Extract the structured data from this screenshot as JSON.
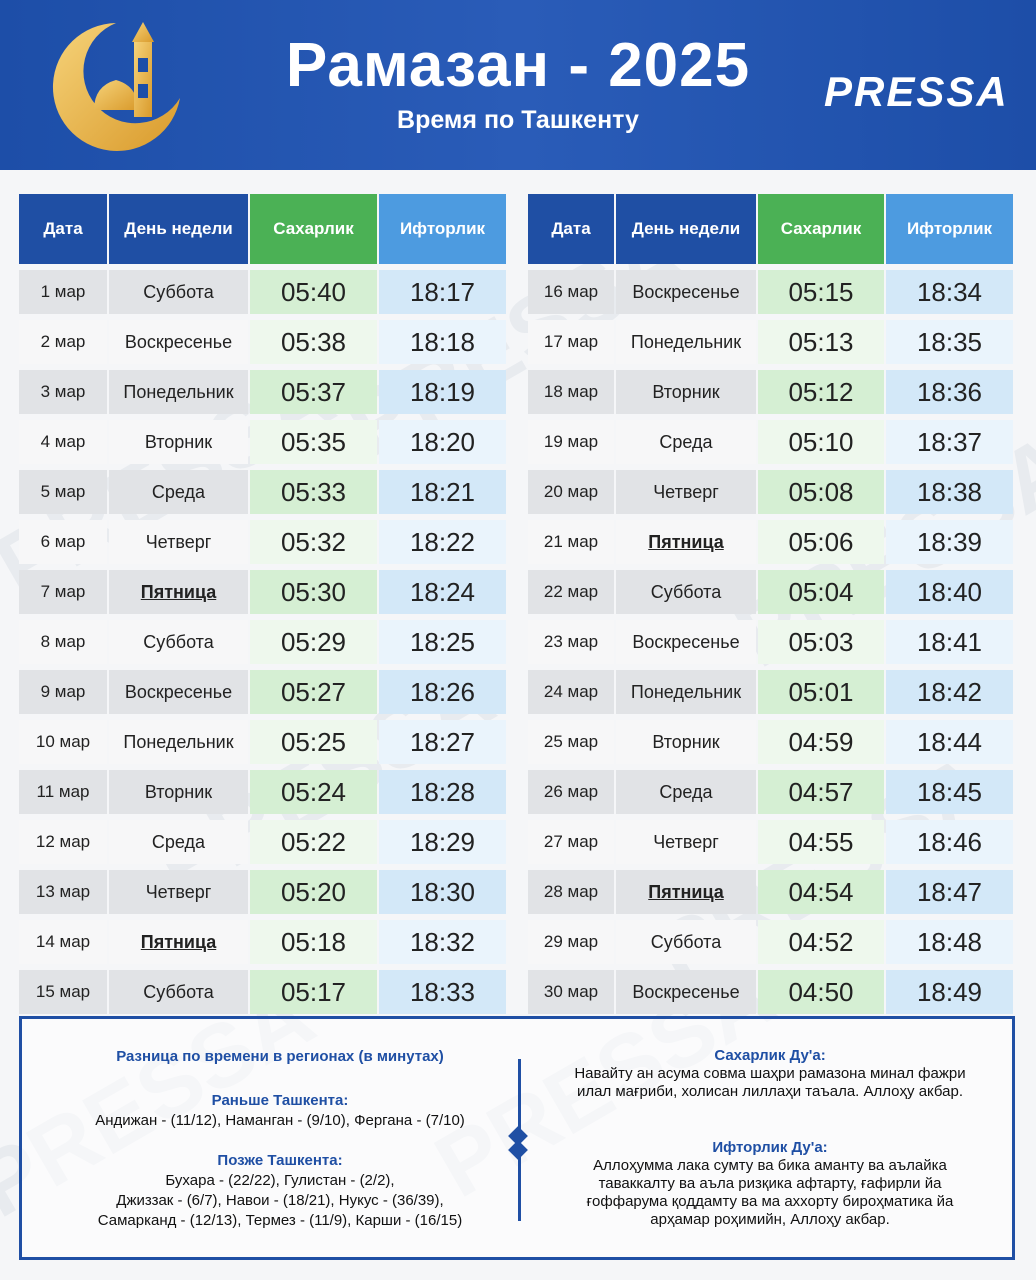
{
  "header": {
    "title": "Рамазан - 2025",
    "subtitle": "Время по Ташкенту",
    "brand": "PRESSA",
    "icon": "crescent-mosque-icon",
    "color_primary": "#1f4fa4",
    "color_gold": "#e8b24a"
  },
  "table": {
    "headers": {
      "date": "Дата",
      "day": "День недели",
      "sahar": "Сахарлик",
      "iftar": "Ифторлик"
    },
    "colors": {
      "header_blue": "#1f4fa4",
      "sahar_green": "#4bb155",
      "iftar_blue": "#4d9be0"
    },
    "left": [
      {
        "date": "1 мар",
        "day": "Суббота",
        "sahar": "05:40",
        "iftar": "18:17"
      },
      {
        "date": "2 мар",
        "day": "Воскресенье",
        "sahar": "05:38",
        "iftar": "18:18"
      },
      {
        "date": "3 мар",
        "day": "Понедельник",
        "sahar": "05:37",
        "iftar": "18:19"
      },
      {
        "date": "4 мар",
        "day": "Вторник",
        "sahar": "05:35",
        "iftar": "18:20"
      },
      {
        "date": "5 мар",
        "day": "Среда",
        "sahar": "05:33",
        "iftar": "18:21"
      },
      {
        "date": "6 мар",
        "day": "Четверг",
        "sahar": "05:32",
        "iftar": "18:22"
      },
      {
        "date": "7 мар",
        "day": "Пятница",
        "sahar": "05:30",
        "iftar": "18:24",
        "friday": true
      },
      {
        "date": "8 мар",
        "day": "Суббота",
        "sahar": "05:29",
        "iftar": "18:25"
      },
      {
        "date": "9 мар",
        "day": "Воскресенье",
        "sahar": "05:27",
        "iftar": "18:26"
      },
      {
        "date": "10 мар",
        "day": "Понедельник",
        "sahar": "05:25",
        "iftar": "18:27"
      },
      {
        "date": "11 мар",
        "day": "Вторник",
        "sahar": "05:24",
        "iftar": "18:28"
      },
      {
        "date": "12 мар",
        "day": "Среда",
        "sahar": "05:22",
        "iftar": "18:29"
      },
      {
        "date": "13 мар",
        "day": "Четверг",
        "sahar": "05:20",
        "iftar": "18:30"
      },
      {
        "date": "14 мар",
        "day": "Пятница",
        "sahar": "05:18",
        "iftar": "18:32",
        "friday": true
      },
      {
        "date": "15 мар",
        "day": "Суббота",
        "sahar": "05:17",
        "iftar": "18:33"
      }
    ],
    "right": [
      {
        "date": "16 мар",
        "day": "Воскресенье",
        "sahar": "05:15",
        "iftar": "18:34"
      },
      {
        "date": "17 мар",
        "day": "Понедельник",
        "sahar": "05:13",
        "iftar": "18:35"
      },
      {
        "date": "18 мар",
        "day": "Вторник",
        "sahar": "05:12",
        "iftar": "18:36"
      },
      {
        "date": "19 мар",
        "day": "Среда",
        "sahar": "05:10",
        "iftar": "18:37"
      },
      {
        "date": "20 мар",
        "day": "Четверг",
        "sahar": "05:08",
        "iftar": "18:38"
      },
      {
        "date": "21 мар",
        "day": "Пятница",
        "sahar": "05:06",
        "iftar": "18:39",
        "friday": true
      },
      {
        "date": "22 мар",
        "day": "Суббота",
        "sahar": "05:04",
        "iftar": "18:40"
      },
      {
        "date": "23 мар",
        "day": "Воскресенье",
        "sahar": "05:03",
        "iftar": "18:41"
      },
      {
        "date": "24 мар",
        "day": "Понедельник",
        "sahar": "05:01",
        "iftar": "18:42"
      },
      {
        "date": "25 мар",
        "day": "Вторник",
        "sahar": "04:59",
        "iftar": "18:44"
      },
      {
        "date": "26 мар",
        "day": "Среда",
        "sahar": "04:57",
        "iftar": "18:45"
      },
      {
        "date": "27 мар",
        "day": "Четверг",
        "sahar": "04:55",
        "iftar": "18:46"
      },
      {
        "date": "28 мар",
        "day": "Пятница",
        "sahar": "04:54",
        "iftar": "18:47",
        "friday": true
      },
      {
        "date": "29 мар",
        "day": "Суббота",
        "sahar": "04:52",
        "iftar": "18:48"
      },
      {
        "date": "30 мар",
        "day": "Воскресенье",
        "sahar": "04:50",
        "iftar": "18:49"
      }
    ]
  },
  "regions": {
    "title": "Разница по времени в регионах (в минутах)",
    "earlier_title": "Раньше Ташкента:",
    "earlier_lines": [
      "Андижан - (11/12), Наманган - (9/10), Фергана - (7/10)"
    ],
    "later_title": "Позже Ташкента:",
    "later_lines": [
      "Бухара - (22/22), Гулистан - (2/2),",
      "Джиззак - (6/7), Навои - (18/21), Нукус - (36/39),",
      "Самарканд - (12/13), Термез - (11/9), Карши - (16/15)"
    ]
  },
  "duas": {
    "sahar_title": "Сахарлик Ду'а:",
    "sahar_lines": [
      "Навайту ан асума совма шаҳри рамазона минал фажри",
      "илал мағриби, холисан лиллаҳи таъала. Аллоҳу акбар."
    ],
    "iftar_title": "Ифторлик Ду'а:",
    "iftar_lines": [
      "Аллоҳумма лака сумту ва бика аманту ва аълайка",
      "таваккалту ва аъла ризқика афтарту, ғафирли йа",
      "ғоффарума қоддамту ва ма аххорту бироҳматика йа",
      "арҳамар роҳимийн, Аллоҳу акбар."
    ]
  },
  "watermark": "PRESSA"
}
